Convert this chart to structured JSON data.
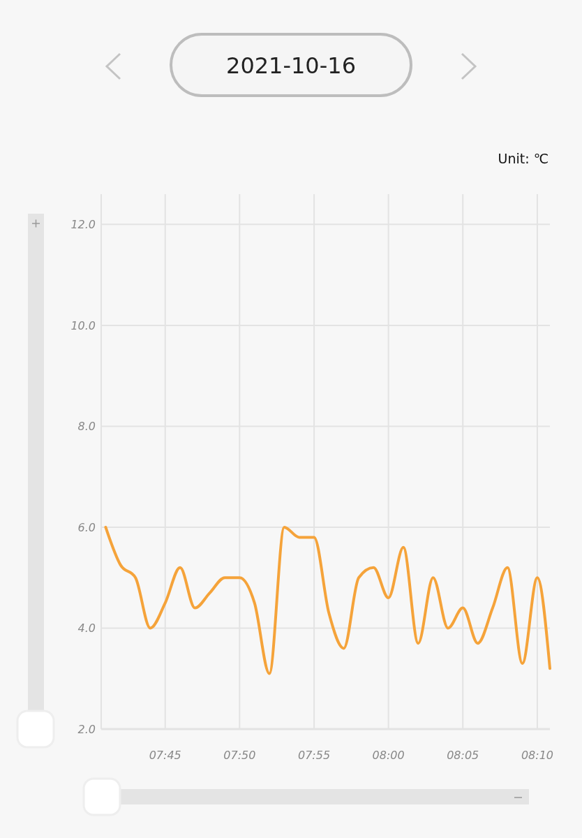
{
  "chart_data": {
    "type": "line",
    "title": "2021-10-16",
    "ylabel": "Unit: ℃",
    "x": [
      7.6833,
      7.7,
      7.7167,
      7.7333,
      7.75,
      7.7667,
      7.7833,
      7.8,
      7.8167,
      7.8333,
      7.85,
      7.8667,
      7.8833,
      7.9,
      7.9167,
      7.9333,
      7.95,
      7.9667,
      7.9833,
      8.0,
      8.0167,
      8.0333,
      8.05,
      8.0667,
      8.0833,
      8.1,
      8.1167,
      8.1333,
      8.15,
      8.1667,
      8.1808
    ],
    "series": [
      {
        "color": "#f5a33a",
        "values": [
          6.0,
          5.25,
          5.0,
          4.0,
          4.5,
          5.2,
          4.4,
          4.7,
          5.0,
          5.0,
          4.5,
          3.1,
          6.0,
          5.8,
          5.8,
          4.3,
          3.6,
          5.0,
          5.2,
          4.6,
          5.6,
          3.7,
          5.0,
          4.0,
          4.4,
          3.7,
          4.4,
          5.2,
          3.3,
          5.0,
          3.2
        ]
      }
    ],
    "xlim": [
      7.6783,
      8.1808
    ],
    "xticks": [
      {
        "value": 7.75,
        "label": "07:45"
      },
      {
        "value": 7.8333,
        "label": "07:50"
      },
      {
        "value": 7.9167,
        "label": "07:55"
      },
      {
        "value": 8.0,
        "label": "08:00"
      },
      {
        "value": 8.0833,
        "label": "08:05"
      },
      {
        "value": 8.1667,
        "label": "08:10"
      }
    ],
    "ylim": [
      2,
      12.6
    ],
    "yticks": [
      {
        "value": 2,
        "label": "2.0"
      },
      {
        "value": 4,
        "label": "4.0"
      },
      {
        "value": 6,
        "label": "6.0"
      },
      {
        "value": 8,
        "label": "8.0"
      },
      {
        "value": 10,
        "label": "10.0"
      },
      {
        "value": 12,
        "label": "12.0"
      }
    ],
    "grid": true,
    "marker": "none",
    "line_style": "solid"
  }
}
